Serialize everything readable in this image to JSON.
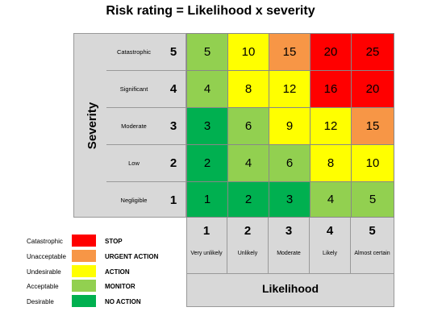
{
  "title": "Risk rating = Likelihood x severity",
  "severity": {
    "axis_label": "Severity",
    "levels": [
      {
        "num": "5",
        "name": "Catastrophic"
      },
      {
        "num": "4",
        "name": "Significant"
      },
      {
        "num": "3",
        "name": "Moderate"
      },
      {
        "num": "2",
        "name": "Low"
      },
      {
        "num": "1",
        "name": "Negligible"
      }
    ]
  },
  "likelihood": {
    "axis_label": "Likelihood",
    "levels": [
      {
        "num": "1",
        "name": "Very unlikely"
      },
      {
        "num": "2",
        "name": "Unlikely"
      },
      {
        "num": "3",
        "name": "Moderate"
      },
      {
        "num": "4",
        "name": "Likely"
      },
      {
        "num": "5",
        "name": "Almost certain"
      }
    ]
  },
  "colors": {
    "stop": "#ff0000",
    "urgent": "#f79646",
    "action": "#ffff00",
    "monitor": "#92d050",
    "no_action": "#00b050"
  },
  "matrix": [
    [
      {
        "v": "5",
        "c": "monitor"
      },
      {
        "v": "10",
        "c": "action"
      },
      {
        "v": "15",
        "c": "urgent"
      },
      {
        "v": "20",
        "c": "stop"
      },
      {
        "v": "25",
        "c": "stop"
      }
    ],
    [
      {
        "v": "4",
        "c": "monitor"
      },
      {
        "v": "8",
        "c": "action"
      },
      {
        "v": "12",
        "c": "action"
      },
      {
        "v": "16",
        "c": "stop"
      },
      {
        "v": "20",
        "c": "stop"
      }
    ],
    [
      {
        "v": "3",
        "c": "no_action"
      },
      {
        "v": "6",
        "c": "monitor"
      },
      {
        "v": "9",
        "c": "action"
      },
      {
        "v": "12",
        "c": "action"
      },
      {
        "v": "15",
        "c": "urgent"
      }
    ],
    [
      {
        "v": "2",
        "c": "no_action"
      },
      {
        "v": "4",
        "c": "monitor"
      },
      {
        "v": "6",
        "c": "monitor"
      },
      {
        "v": "8",
        "c": "action"
      },
      {
        "v": "10",
        "c": "action"
      }
    ],
    [
      {
        "v": "1",
        "c": "no_action"
      },
      {
        "v": "2",
        "c": "no_action"
      },
      {
        "v": "3",
        "c": "no_action"
      },
      {
        "v": "4",
        "c": "monitor"
      },
      {
        "v": "5",
        "c": "monitor"
      }
    ]
  ],
  "legend": [
    {
      "name": "Catastrophic",
      "action": "STOP",
      "c": "stop"
    },
    {
      "name": "Unacceptable",
      "action": "URGENT ACTION",
      "c": "urgent"
    },
    {
      "name": "Undesirable",
      "action": "ACTION",
      "c": "action"
    },
    {
      "name": "Acceptable",
      "action": "MONITOR",
      "c": "monitor"
    },
    {
      "name": "Desirable",
      "action": "NO ACTION",
      "c": "no_action"
    }
  ]
}
